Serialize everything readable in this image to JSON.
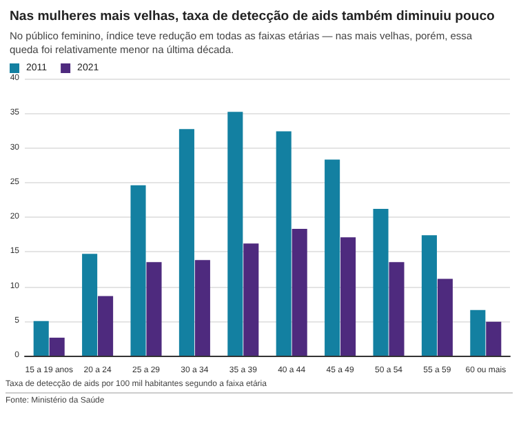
{
  "chart_data": {
    "type": "bar",
    "title": "Nas mulheres mais velhas, taxa de detecção de aids também diminuiu pouco",
    "subtitle": "No público feminino, índice teve redução em todas as faixas etárias — nas mais velhas, porém, essa queda foi relativamente menor na última década.",
    "categories": [
      "15 a 19 anos",
      "20 a 24",
      "25 a 29",
      "30 a 34",
      "35 a 39",
      "40 a 44",
      "45 a 49",
      "50 a 54",
      "55 a 59",
      "60 ou mais"
    ],
    "series": [
      {
        "name": "2011",
        "color": "#1380a1",
        "values": [
          5.0,
          14.7,
          24.6,
          32.7,
          35.2,
          32.4,
          28.3,
          21.2,
          17.4,
          6.6
        ]
      },
      {
        "name": "2021",
        "color": "#4e2a7e",
        "values": [
          2.6,
          8.6,
          13.5,
          13.8,
          16.2,
          18.3,
          17.1,
          13.5,
          11.1,
          4.9
        ]
      }
    ],
    "ylim": [
      0,
      40
    ],
    "yticks": [
      0,
      5,
      10,
      15,
      20,
      25,
      30,
      35,
      40
    ],
    "grid": "y",
    "legend": "top left",
    "annotations": [
      "Taxa de detecção de aids por 100 mil habitantes segundo a faixa etária",
      "Fonte: Ministério da Saúde"
    ]
  }
}
